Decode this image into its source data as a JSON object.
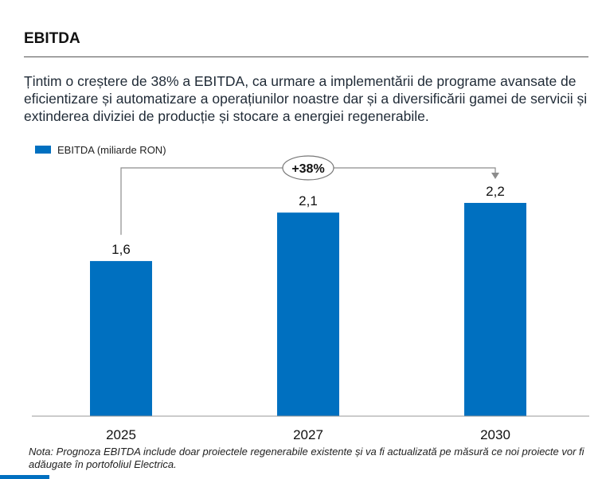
{
  "header": {
    "title": "EBITDA",
    "intro": "Țintim o creștere de 38% a EBITDA, ca urmare a implementării de programe avansate de eficientizare și automatizare a operațiunilor noastre dar și a diversificării gamei de servicii și extinderea diviziei de producție și stocare a energiei regenerabile."
  },
  "chart_data": {
    "type": "bar",
    "categories": [
      "2025",
      "2027",
      "2030"
    ],
    "series": [
      {
        "name": "EBITDA (miliarde RON)",
        "values": [
          1.6,
          2.1,
          2.2
        ],
        "labels": [
          "1,6",
          "2,1",
          "2,2"
        ]
      }
    ],
    "ylim": [
      0,
      2.2
    ],
    "grid": false,
    "legend": "top-left",
    "annotation": {
      "text": "+38%",
      "from": "2025",
      "to": "2030"
    },
    "colors": {
      "bar": "#0070c0"
    }
  },
  "footer": {
    "note": "Nota: Prognoza EBITDA include doar proiectele regenerabile existente și va fi actualizată pe măsură ce noi proiecte vor fi adăugate în portofoliul Electrica."
  }
}
